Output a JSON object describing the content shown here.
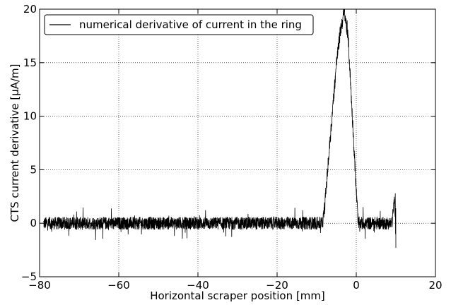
{
  "chart_data": {
    "type": "line",
    "title": "",
    "xlabel": "Horizontal scraper position [mm]",
    "ylabel": "CTS current derivative [µA/m]",
    "xlim": [
      -80,
      20
    ],
    "ylim": [
      -5,
      20
    ],
    "x_ticks": [
      -80,
      -60,
      -40,
      -20,
      0,
      20
    ],
    "y_ticks": [
      -5,
      0,
      5,
      10,
      15,
      20
    ],
    "x_tick_labels": [
      "−80",
      "−60",
      "−40",
      "−20",
      "0",
      "20"
    ],
    "y_tick_labels": [
      "−5",
      "0",
      "5",
      "10",
      "15",
      "20"
    ],
    "grid": true,
    "legend_position": "top-left",
    "series": [
      {
        "name": "numerical derivative of current in the ring",
        "color": "#000000",
        "noise_band": {
          "x_range": [
            -79,
            10
          ],
          "y_range": [
            -1.6,
            1.8
          ]
        },
        "envelope": {
          "x": [
            -79,
            -30,
            -15,
            -8.5,
            -8,
            -7,
            -6,
            -5,
            -4,
            -3,
            -2.5,
            -2,
            -1,
            0,
            0.5,
            1,
            9,
            9.8,
            10
          ],
          "y": [
            0,
            0,
            0,
            0,
            1.5,
            6,
            10.5,
            15,
            18,
            19.8,
            18.5,
            17,
            10,
            3,
            0,
            0,
            0,
            2.8,
            -2.3
          ]
        }
      }
    ]
  }
}
